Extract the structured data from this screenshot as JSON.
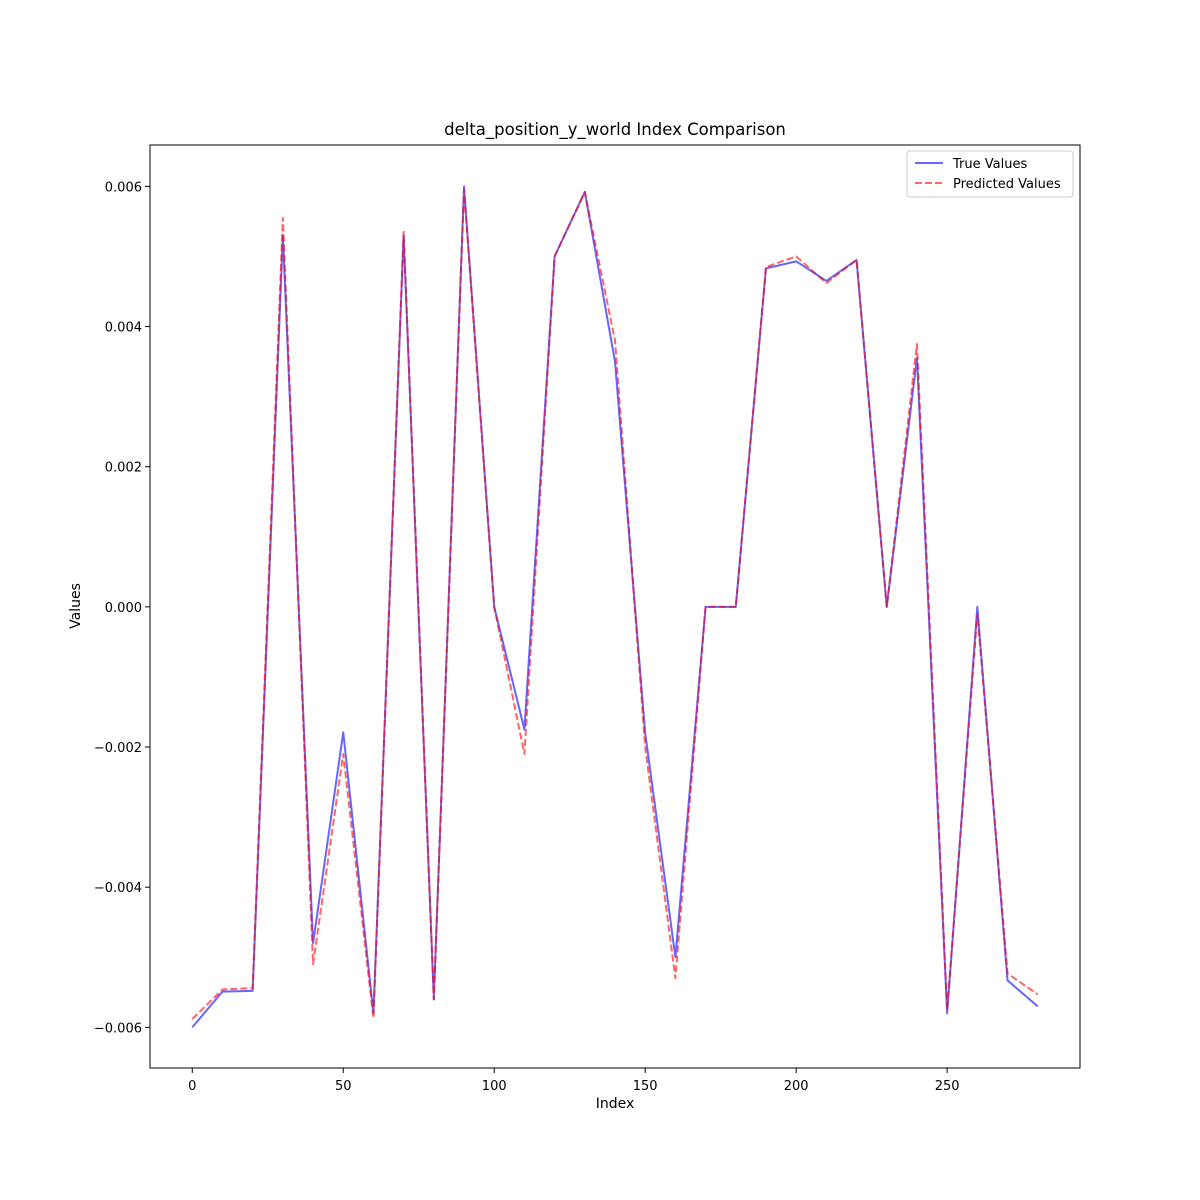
{
  "chart_data": {
    "type": "line",
    "title": "delta_position_y_world Index Comparison",
    "xlabel": "Index",
    "ylabel": "Values",
    "xlim": [
      -14,
      294
    ],
    "ylim": [
      -0.00658,
      0.00659
    ],
    "xticks": [
      0,
      50,
      100,
      150,
      200,
      250
    ],
    "xtick_labels": [
      "0",
      "50",
      "100",
      "150",
      "200",
      "250"
    ],
    "yticks": [
      -0.006,
      -0.004,
      -0.002,
      0.0,
      0.002,
      0.004,
      0.006
    ],
    "ytick_labels": [
      "−0.006",
      "−0.004",
      "−0.002",
      "0.000",
      "0.002",
      "0.004",
      "0.006"
    ],
    "grid": false,
    "legend_position": "top-right",
    "x": [
      0,
      10,
      20,
      30,
      40,
      50,
      60,
      70,
      80,
      90,
      100,
      110,
      120,
      130,
      140,
      150,
      160,
      170,
      180,
      190,
      200,
      210,
      220,
      230,
      240,
      250,
      260,
      270,
      280
    ],
    "series": [
      {
        "name": "True Values",
        "color": "#0000ff",
        "style": "solid",
        "values": [
          -0.006,
          -0.00549,
          -0.00548,
          0.0053,
          -0.0048,
          -0.00179,
          -0.0058,
          0.0053,
          -0.0056,
          0.006,
          0.0,
          -0.00175,
          0.005,
          0.00592,
          0.0035,
          -0.0018,
          -0.005,
          0.0,
          0.0,
          0.00483,
          0.00493,
          0.00465,
          0.00495,
          0.0,
          0.00355,
          -0.0058,
          0.0,
          -0.00533,
          -0.0057
        ]
      },
      {
        "name": "Predicted Values",
        "color": "#ff0000",
        "style": "dashed",
        "values": [
          -0.00588,
          -0.00546,
          -0.00544,
          0.00555,
          -0.0051,
          -0.0021,
          -0.00587,
          0.00535,
          -0.0056,
          0.00595,
          0.0,
          -0.0021,
          0.005,
          0.00592,
          0.0038,
          -0.002,
          -0.0053,
          0.0,
          0.0,
          0.00485,
          0.005,
          0.00462,
          0.00495,
          0.0,
          0.00375,
          -0.00575,
          -0.0001,
          -0.00523,
          -0.00553
        ]
      }
    ]
  }
}
